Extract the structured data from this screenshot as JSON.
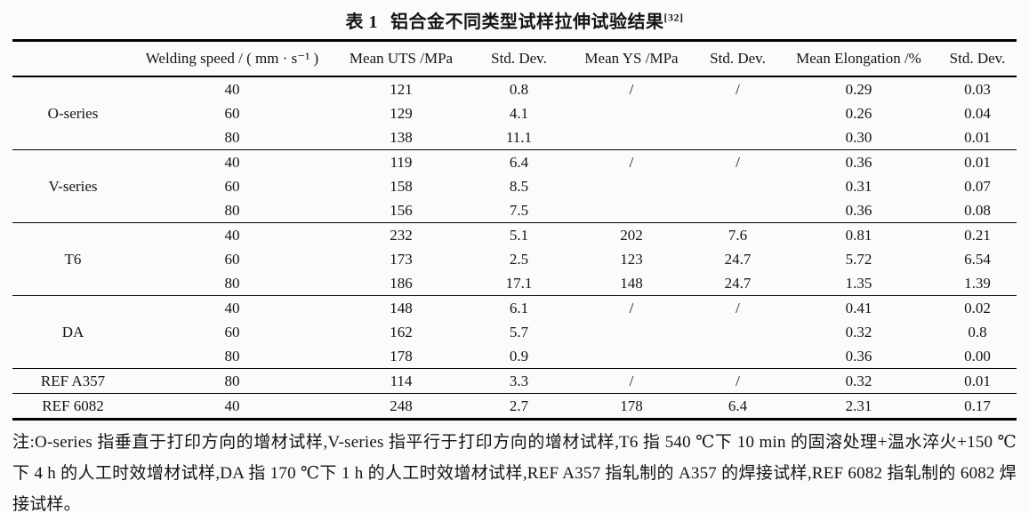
{
  "title": {
    "prefix": "表 1",
    "text": "铝合金不同类型试样拉伸试验结果",
    "superscript": "[32]"
  },
  "table": {
    "col_headers": [
      "Welding speed / ( mm · s⁻¹ )",
      "Mean UTS /MPa",
      "Std. Dev.",
      "Mean YS /MPa",
      "Std. Dev.",
      "Mean Elongation /%",
      "Std. Dev."
    ],
    "groups": [
      {
        "label": "O-series",
        "rows": [
          [
            "40",
            "121",
            "0.8",
            "/",
            "/",
            "0.29",
            "0.03"
          ],
          [
            "60",
            "129",
            "4.1",
            "",
            "",
            "0.26",
            "0.04"
          ],
          [
            "80",
            "138",
            "11.1",
            "",
            "",
            "0.30",
            "0.01"
          ]
        ]
      },
      {
        "label": "V-series",
        "rows": [
          [
            "40",
            "119",
            "6.4",
            "/",
            "/",
            "0.36",
            "0.01"
          ],
          [
            "60",
            "158",
            "8.5",
            "",
            "",
            "0.31",
            "0.07"
          ],
          [
            "80",
            "156",
            "7.5",
            "",
            "",
            "0.36",
            "0.08"
          ]
        ]
      },
      {
        "label": "T6",
        "rows": [
          [
            "40",
            "232",
            "5.1",
            "202",
            "7.6",
            "0.81",
            "0.21"
          ],
          [
            "60",
            "173",
            "2.5",
            "123",
            "24.7",
            "5.72",
            "6.54"
          ],
          [
            "80",
            "186",
            "17.1",
            "148",
            "24.7",
            "1.35",
            "1.39"
          ]
        ]
      },
      {
        "label": "DA",
        "rows": [
          [
            "40",
            "148",
            "6.1",
            "/",
            "/",
            "0.41",
            "0.02"
          ],
          [
            "60",
            "162",
            "5.7",
            "",
            "",
            "0.32",
            "0.8"
          ],
          [
            "80",
            "178",
            "0.9",
            "",
            "",
            "0.36",
            "0.00"
          ]
        ]
      },
      {
        "label": "REF A357",
        "rows": [
          [
            "80",
            "114",
            "3.3",
            "/",
            "/",
            "0.32",
            "0.01"
          ]
        ]
      },
      {
        "label": "REF 6082",
        "rows": [
          [
            "40",
            "248",
            "2.7",
            "178",
            "6.4",
            "2.31",
            "0.17"
          ]
        ]
      }
    ]
  },
  "note": {
    "text": "注:O-series 指垂直于打印方向的增材试样,V-series 指平行于打印方向的增材试样,T6 指 540 ℃下 10 min 的固溶处理+温水淬火+150 ℃下 4 h 的人工时效增材试样,DA 指 170 ℃下 1 h 的人工时效增材试样,REF A357 指轧制的 A357 的焊接试样,REF 6082 指轧制的 6082 焊接试样。"
  }
}
